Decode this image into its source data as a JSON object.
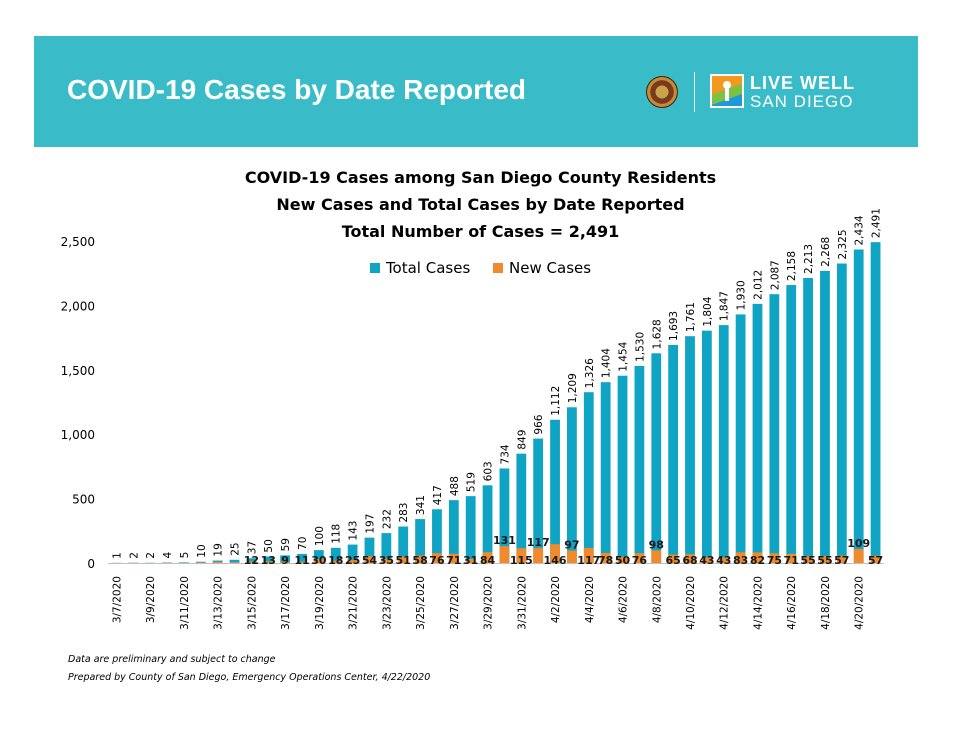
{
  "banner": {
    "title": "COVID-19 Cases by Date Reported",
    "logo_text_line1": "LIVE WELL",
    "logo_text_line2": "SAN DIEGO",
    "color": "#3abcc8"
  },
  "footer": {
    "line1": "Data are preliminary and subject to change",
    "line2": "Prepared by County of San Diego, Emergency Operations Center, 4/22/2020"
  },
  "chart_data": {
    "type": "bar",
    "title": "COVID-19 Cases among San Diego County Residents",
    "subtitle": "New Cases and Total Cases by Date Reported",
    "subtitle2": "Total Number of Cases = 2,491",
    "xlabel": "",
    "ylabel": "",
    "ylim": [
      0,
      2500
    ],
    "yticks": [
      0,
      500,
      1000,
      1500,
      2000,
      2500
    ],
    "ytick_labels": [
      "0",
      "500",
      "1,000",
      "1,500",
      "2,000",
      "2,500"
    ],
    "grid": false,
    "legend_position": "top-center",
    "categories": [
      "3/7/2020",
      "3/8/2020",
      "3/9/2020",
      "3/10/2020",
      "3/11/2020",
      "3/12/2020",
      "3/13/2020",
      "3/14/2020",
      "3/15/2020",
      "3/16/2020",
      "3/17/2020",
      "3/18/2020",
      "3/19/2020",
      "3/20/2020",
      "3/21/2020",
      "3/22/2020",
      "3/23/2020",
      "3/24/2020",
      "3/25/2020",
      "3/26/2020",
      "3/27/2020",
      "3/28/2020",
      "3/29/2020",
      "3/30/2020",
      "3/31/2020",
      "4/1/2020",
      "4/2/2020",
      "4/3/2020",
      "4/4/2020",
      "4/5/2020",
      "4/6/2020",
      "4/7/2020",
      "4/8/2020",
      "4/9/2020",
      "4/10/2020",
      "4/11/2020",
      "4/12/2020",
      "4/13/2020",
      "4/14/2020",
      "4/15/2020",
      "4/16/2020",
      "4/17/2020",
      "4/18/2020",
      "4/19/2020",
      "4/20/2020",
      "4/21/2020"
    ],
    "xtick_labels_shown": [
      "3/7/2020",
      "3/9/2020",
      "3/11/2020",
      "3/13/2020",
      "3/15/2020",
      "3/17/2020",
      "3/19/2020",
      "3/21/2020",
      "3/23/2020",
      "3/25/2020",
      "3/27/2020",
      "3/29/2020",
      "3/31/2020",
      "4/2/2020",
      "4/4/2020",
      "4/6/2020",
      "4/8/2020",
      "4/10/2020",
      "4/12/2020",
      "4/14/2020",
      "4/16/2020",
      "4/18/2020",
      "4/20/2020"
    ],
    "series": [
      {
        "name": "Total Cases",
        "color": "#0fa3c4",
        "values": [
          1,
          2,
          2,
          4,
          5,
          10,
          19,
          25,
          37,
          50,
          59,
          70,
          100,
          118,
          143,
          197,
          232,
          283,
          341,
          417,
          488,
          519,
          603,
          734,
          849,
          966,
          1112,
          1209,
          1326,
          1404,
          1454,
          1530,
          1628,
          1693,
          1761,
          1804,
          1847,
          1930,
          2012,
          2087,
          2158,
          2213,
          2268,
          2325,
          2434,
          2491
        ],
        "labels": [
          "1",
          "2",
          "2",
          "4",
          "5",
          "10",
          "19",
          "25",
          "37",
          "50",
          "59",
          "70",
          "100",
          "118",
          "143",
          "197",
          "232",
          "283",
          "341",
          "417",
          "488",
          "519",
          "603",
          "734",
          "849",
          "966",
          "1,112",
          "1,209",
          "1,326",
          "1,404",
          "1,454",
          "1,530",
          "1,628",
          "1,693",
          "1,761",
          "1,804",
          "1,847",
          "1,930",
          "2,012",
          "2,087",
          "2,158",
          "2,213",
          "2,268",
          "2,325",
          "2,434",
          "2,491"
        ]
      },
      {
        "name": "New Cases",
        "color": "#f08a2c",
        "values": [
          1,
          1,
          0,
          2,
          1,
          5,
          9,
          6,
          12,
          13,
          9,
          11,
          30,
          18,
          25,
          54,
          35,
          51,
          58,
          76,
          71,
          31,
          84,
          131,
          115,
          117,
          146,
          97,
          117,
          78,
          50,
          76,
          98,
          65,
          68,
          43,
          43,
          83,
          82,
          75,
          71,
          55,
          55,
          57,
          109,
          57
        ],
        "labels": [
          "",
          "",
          "",
          "",
          "",
          "",
          "",
          "",
          "12",
          "13",
          "9",
          "11",
          "30",
          "18",
          "25",
          "54",
          "35",
          "51",
          "58",
          "76",
          "71",
          "31",
          "84",
          "131",
          "115",
          "117",
          "146",
          "97",
          "117",
          "78",
          "50",
          "76",
          "98",
          "65",
          "68",
          "43",
          "43",
          "83",
          "82",
          "75",
          "71",
          "55",
          "55",
          "57",
          "109",
          "57"
        ]
      }
    ]
  }
}
